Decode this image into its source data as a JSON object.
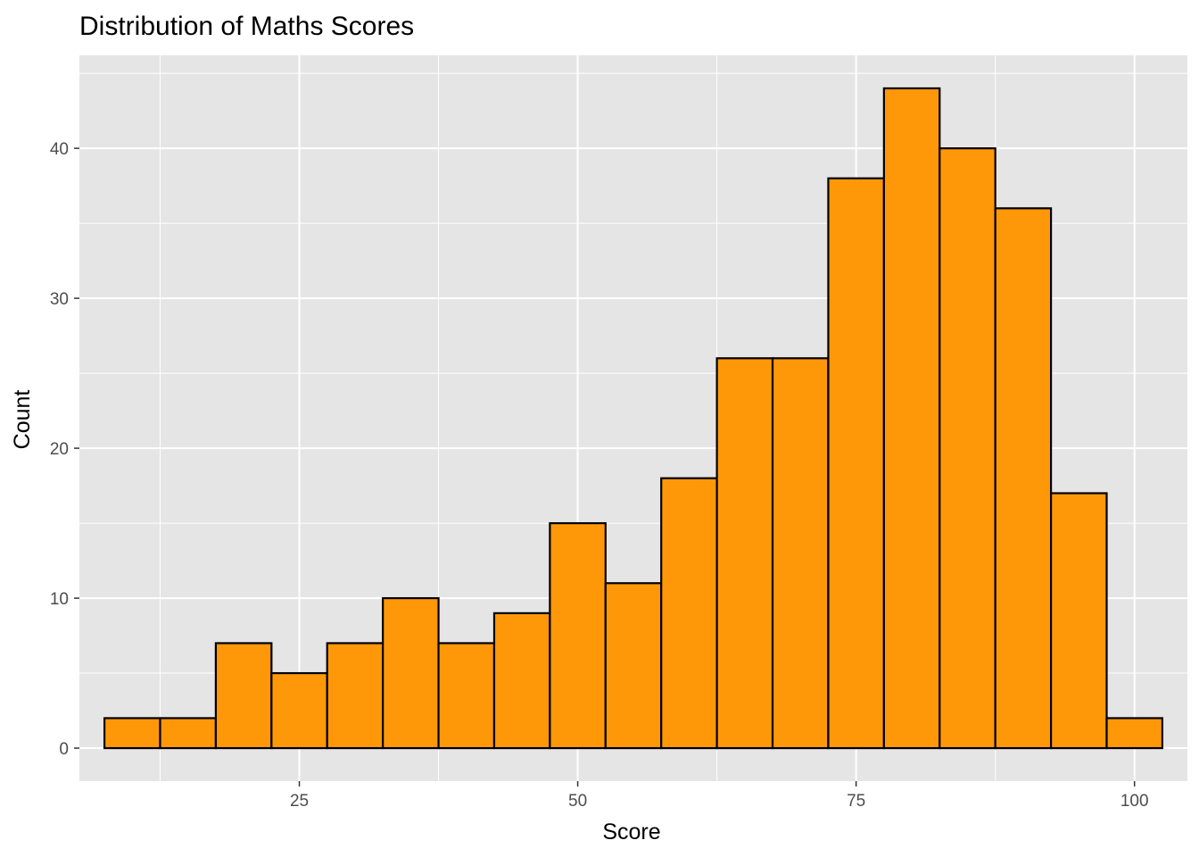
{
  "chart_data": {
    "type": "bar",
    "title": "Distribution of Maths Scores",
    "xlabel": "Score",
    "ylabel": "Count",
    "bin_width": 5,
    "bin_centers": [
      10,
      15,
      20,
      25,
      30,
      35,
      40,
      45,
      50,
      55,
      60,
      65,
      70,
      75,
      80,
      85,
      90,
      95,
      100
    ],
    "values": [
      2,
      2,
      7,
      5,
      7,
      10,
      7,
      9,
      15,
      11,
      18,
      26,
      26,
      38,
      44,
      40,
      36,
      17,
      2
    ],
    "xlim": [
      5.25,
      104.75
    ],
    "ylim": [
      -2.2,
      46.2
    ],
    "x_ticks": [
      25,
      50,
      75,
      100
    ],
    "x_tick_labels": [
      "25",
      "50",
      "75",
      "100"
    ],
    "y_ticks": [
      0,
      10,
      20,
      30,
      40
    ],
    "y_tick_labels": [
      "0",
      "10",
      "20",
      "30",
      "40"
    ],
    "grid": true,
    "colors": {
      "bar_fill": "#FF9808",
      "bar_stroke": "#000000",
      "panel": "#E5E5E5",
      "grid": "#FFFFFF",
      "tick": "#333333"
    }
  }
}
